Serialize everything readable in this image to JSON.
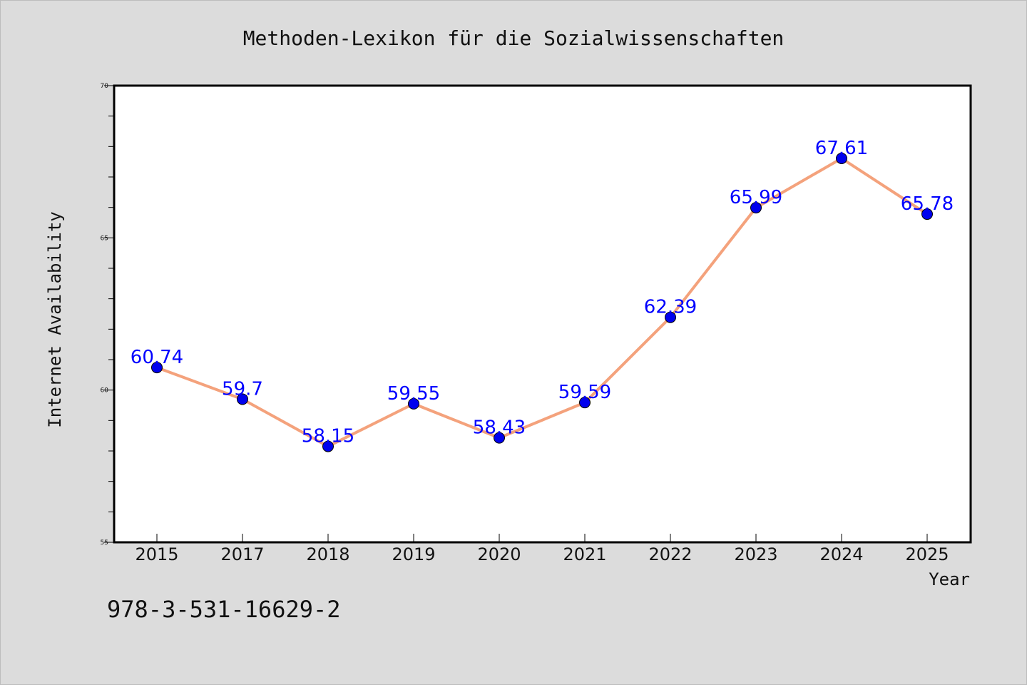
{
  "chart_data": {
    "type": "line",
    "title": "Methoden-Lexikon für die Sozialwissenschaften",
    "xlabel": "Year",
    "ylabel": "Internet Availability",
    "categories": [
      "2015",
      "2017",
      "2018",
      "2019",
      "2020",
      "2021",
      "2022",
      "2023",
      "2024",
      "2025"
    ],
    "series": [
      {
        "values": [
          60.74,
          59.7,
          58.15,
          59.55,
          58.43,
          59.59,
          62.39,
          65.99,
          67.61,
          65.78
        ],
        "labels": [
          "60.74",
          "59.7",
          "58.15",
          "59.55",
          "58.43",
          "59.59",
          "62.39",
          "65.99",
          "67.61",
          "65.78"
        ],
        "line_color": "#f4a27c",
        "marker_color": "#0000ee",
        "label_color": "#0000ff"
      }
    ],
    "ylim": [
      55,
      70
    ],
    "ytick_labels": [
      "55",
      "60",
      "65",
      "70"
    ],
    "grid": false,
    "legend": "none"
  },
  "footer": {
    "isbn": "978-3-531-16629-2"
  }
}
